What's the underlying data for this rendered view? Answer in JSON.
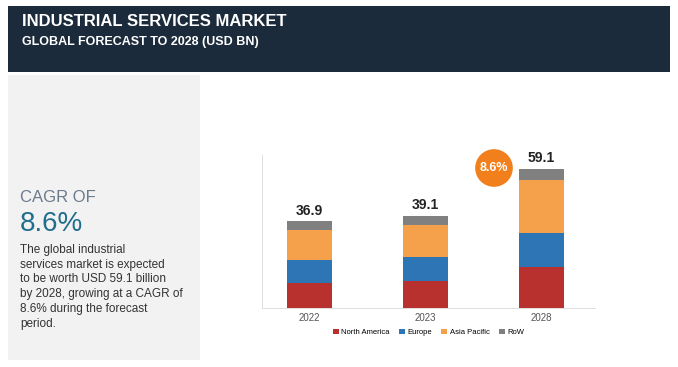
{
  "header": {
    "title": "INDUSTRIAL SERVICES MARKET",
    "subtitle": "GLOBAL FORECAST TO 2028 (USD BN)"
  },
  "side_panel": {
    "heading": "CAGR OF",
    "value": "8.6%",
    "text": "The global industrial services market is expected to be worth USD 59.1 billion by 2028, growing at a CAGR of 8.6% during the forecast period."
  },
  "chart_data": {
    "type": "bar",
    "stacked": true,
    "categories": [
      "2022",
      "2023",
      "2028"
    ],
    "series": [
      {
        "name": "North America",
        "color": "#B8312F",
        "values": [
          10.6,
          11.4,
          17.4
        ]
      },
      {
        "name": "Europe",
        "color": "#2E75B6",
        "values": [
          9.8,
          10.2,
          14.4
        ]
      },
      {
        "name": "Asia Pacific",
        "color": "#F5A04A",
        "values": [
          12.7,
          13.6,
          22.5
        ]
      },
      {
        "name": "RoW",
        "color": "#808080",
        "values": [
          3.8,
          3.9,
          4.8
        ]
      }
    ],
    "totals": [
      36.9,
      39.1,
      59.1
    ],
    "annotations": [
      "8.6%"
    ],
    "ylim": [
      0,
      65
    ],
    "tick_labels": "x",
    "legend": "upper center"
  }
}
